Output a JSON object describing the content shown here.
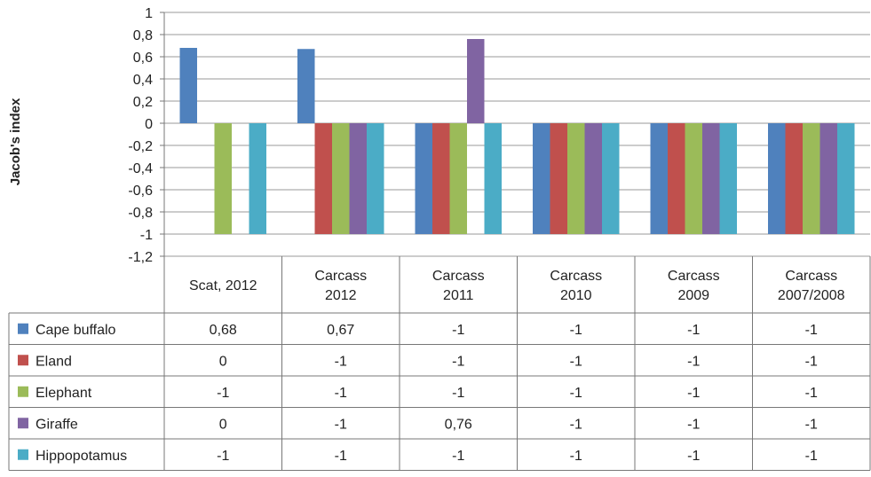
{
  "chart_data": {
    "type": "bar",
    "title": "",
    "xlabel": "",
    "ylabel": "Jacob's index",
    "ylim": [
      -1.2,
      1
    ],
    "yticks": [
      "1",
      "0,8",
      "0,6",
      "0,4",
      "0,2",
      "0",
      "-0,2",
      "-0,4",
      "-0,6",
      "-0,8",
      "-1",
      "-1,2"
    ],
    "ytick_values": [
      1,
      0.8,
      0.6,
      0.4,
      0.2,
      0,
      -0.2,
      -0.4,
      -0.6,
      -0.8,
      -1,
      -1.2
    ],
    "grid": true,
    "legend": "data-table",
    "categories": [
      [
        "Scat, 2012"
      ],
      [
        "Carcass",
        "2012"
      ],
      [
        "Carcass",
        "2011"
      ],
      [
        "Carcass",
        "2010"
      ],
      [
        "Carcass",
        "2009"
      ],
      [
        "Carcass",
        "2007/2008"
      ]
    ],
    "series": [
      {
        "name": "Cape buffalo",
        "color": "#4f81bd",
        "values": [
          0.68,
          0.67,
          -1,
          -1,
          -1,
          -1
        ],
        "labels": [
          "0,68",
          "0,67",
          "-1",
          "-1",
          "-1",
          "-1"
        ]
      },
      {
        "name": "Eland",
        "color": "#c0504d",
        "values": [
          0,
          -1,
          -1,
          -1,
          -1,
          -1
        ],
        "labels": [
          "0",
          "-1",
          "-1",
          "-1",
          "-1",
          "-1"
        ]
      },
      {
        "name": "Elephant",
        "color": "#9bbb59",
        "values": [
          -1,
          -1,
          -1,
          -1,
          -1,
          -1
        ],
        "labels": [
          "-1",
          "-1",
          "-1",
          "-1",
          "-1",
          "-1"
        ]
      },
      {
        "name": "Giraffe",
        "color": "#8064a2",
        "values": [
          0,
          -1,
          0.76,
          -1,
          -1,
          -1
        ],
        "labels": [
          "0",
          "-1",
          "0,76",
          "-1",
          "-1",
          "-1"
        ]
      },
      {
        "name": "Hippopotamus",
        "color": "#4bacc6",
        "values": [
          -1,
          -1,
          -1,
          -1,
          -1,
          -1
        ],
        "labels": [
          "-1",
          "-1",
          "-1",
          "-1",
          "-1",
          "-1"
        ]
      }
    ]
  }
}
